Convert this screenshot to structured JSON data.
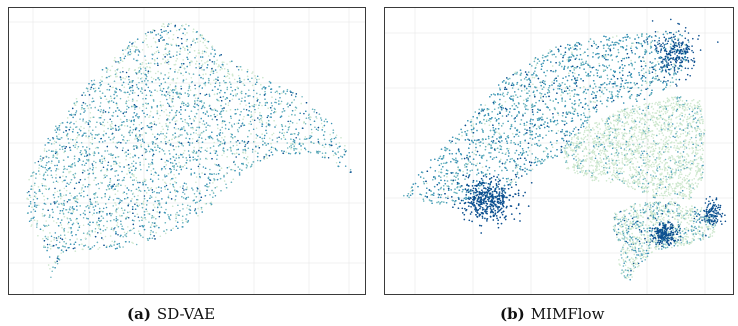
{
  "figure": {
    "panels": [
      {
        "tag": "(a)",
        "label": "SD-VAE"
      },
      {
        "tag": "(b)",
        "label": "MIMFlow"
      }
    ],
    "palette": {
      "light": "#cfe8cf",
      "mid": "#6fb6c0",
      "teal": "#3c93b5",
      "dark": "#0b4f8f",
      "grid": "#e6e6e6",
      "frame": "#3a3a3a"
    }
  }
}
